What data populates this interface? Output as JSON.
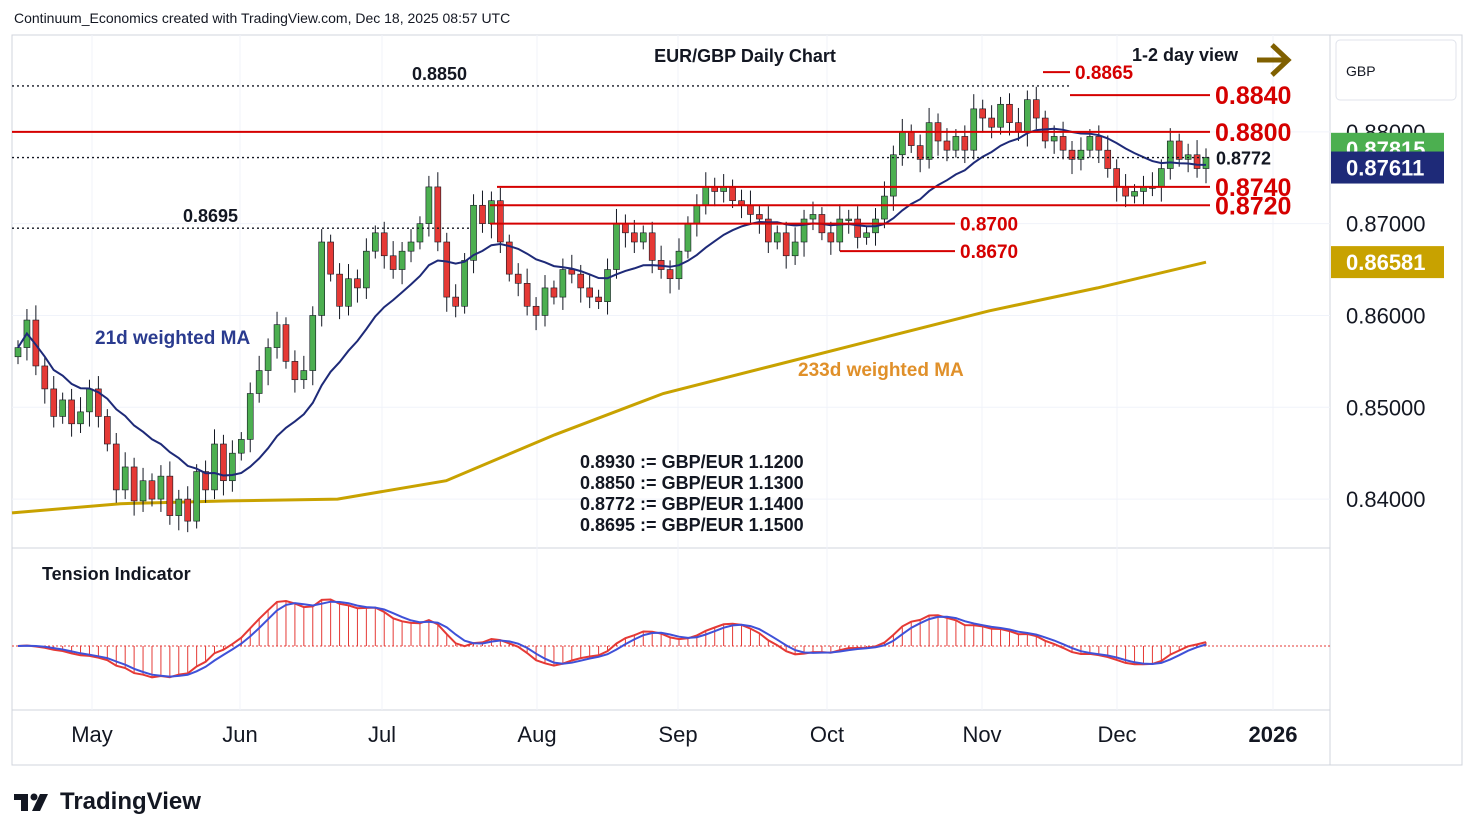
{
  "header": {
    "created_text": "Continuum_Economics created with TradingView.com, Dec 18, 2025 08:57 UTC"
  },
  "brand": {
    "name": "TradingView"
  },
  "chart_data": {
    "type": "candlestick",
    "title": "EUR/GBP Daily Chart",
    "view_label": "1-2 day view",
    "currency": "GBP",
    "ylim": [
      0.835,
      0.89
    ],
    "y_ticks": [
      "0.88000",
      "0.87000",
      "0.86000",
      "0.85000",
      "0.84000"
    ],
    "y_tick_values": [
      0.88,
      0.87,
      0.86,
      0.85,
      0.84
    ],
    "x_ticks": [
      "May",
      "Jun",
      "Jul",
      "Aug",
      "Sep",
      "Oct",
      "Nov",
      "Dec",
      "2026"
    ],
    "price_badges": [
      {
        "label": "0.87815",
        "value": 0.87815,
        "color": "#4caf50"
      },
      {
        "label": "0.87611",
        "value": 0.87611,
        "color": "#1e2a78"
      },
      {
        "label": "0.86581",
        "value": 0.86581,
        "color": "#c8a200"
      }
    ],
    "levels_red": [
      {
        "label": "0.8840",
        "value": 0.884
      },
      {
        "label": "0.8800",
        "value": 0.88
      },
      {
        "label": "0.8740",
        "value": 0.874
      },
      {
        "label": "0.8720",
        "value": 0.872
      },
      {
        "label": "0.8700",
        "value": 0.87
      },
      {
        "label": "0.8670",
        "value": 0.867
      },
      {
        "label": "0.8865",
        "value": 0.8865
      }
    ],
    "levels_dotted": [
      {
        "label": "0.8850",
        "value": 0.885
      },
      {
        "label": "0.8772",
        "value": 0.8772
      },
      {
        "label": "0.8695",
        "value": 0.8695
      }
    ],
    "conversions": [
      "0.8930 := GBP/EUR 1.1200",
      "0.8850 := GBP/EUR 1.1300",
      "0.8772 := GBP/EUR 1.1400",
      "0.8695 := GBP/EUR 1.1500"
    ],
    "ma21_label": "21d weighted MA",
    "ma233_label": "233d weighted MA",
    "indicator_label": "Tension Indicator",
    "colors": {
      "up": "#4caf50",
      "down": "#e53935",
      "ma21": "#1e2a78",
      "ma233": "#c8a200",
      "level": "#d50000",
      "arrow": "#806000"
    },
    "closes": [
      0.8565,
      0.8595,
      0.8545,
      0.852,
      0.849,
      0.8508,
      0.8482,
      0.8495,
      0.852,
      0.849,
      0.846,
      0.841,
      0.8435,
      0.8398,
      0.842,
      0.84,
      0.8425,
      0.8382,
      0.84,
      0.8376,
      0.843,
      0.841,
      0.846,
      0.842,
      0.845,
      0.8465,
      0.8515,
      0.854,
      0.8565,
      0.859,
      0.855,
      0.853,
      0.854,
      0.86,
      0.868,
      0.8645,
      0.861,
      0.864,
      0.863,
      0.867,
      0.869,
      0.8665,
      0.865,
      0.867,
      0.868,
      0.87,
      0.874,
      0.868,
      0.862,
      0.861,
      0.866,
      0.872,
      0.87,
      0.8725,
      0.868,
      0.8645,
      0.8635,
      0.861,
      0.86,
      0.863,
      0.862,
      0.865,
      0.8645,
      0.863,
      0.862,
      0.8615,
      0.865,
      0.87,
      0.869,
      0.868,
      0.869,
      0.866,
      0.865,
      0.864,
      0.867,
      0.87,
      0.872,
      0.874,
      0.8735,
      0.874,
      0.8725,
      0.872,
      0.871,
      0.8705,
      0.868,
      0.869,
      0.8665,
      0.868,
      0.8705,
      0.871,
      0.869,
      0.868,
      0.8705,
      0.8705,
      0.8685,
      0.869,
      0.8705,
      0.873,
      0.8775,
      0.88,
      0.8785,
      0.877,
      0.881,
      0.879,
      0.878,
      0.8795,
      0.878,
      0.8825,
      0.8815,
      0.8805,
      0.883,
      0.881,
      0.88,
      0.8835,
      0.8815,
      0.879,
      0.8795,
      0.878,
      0.877,
      0.878,
      0.8795,
      0.878,
      0.876,
      0.874,
      0.873,
      0.8735,
      0.874,
      0.874,
      0.876,
      0.879,
      0.877,
      0.8775,
      0.876,
      0.8772
    ]
  }
}
